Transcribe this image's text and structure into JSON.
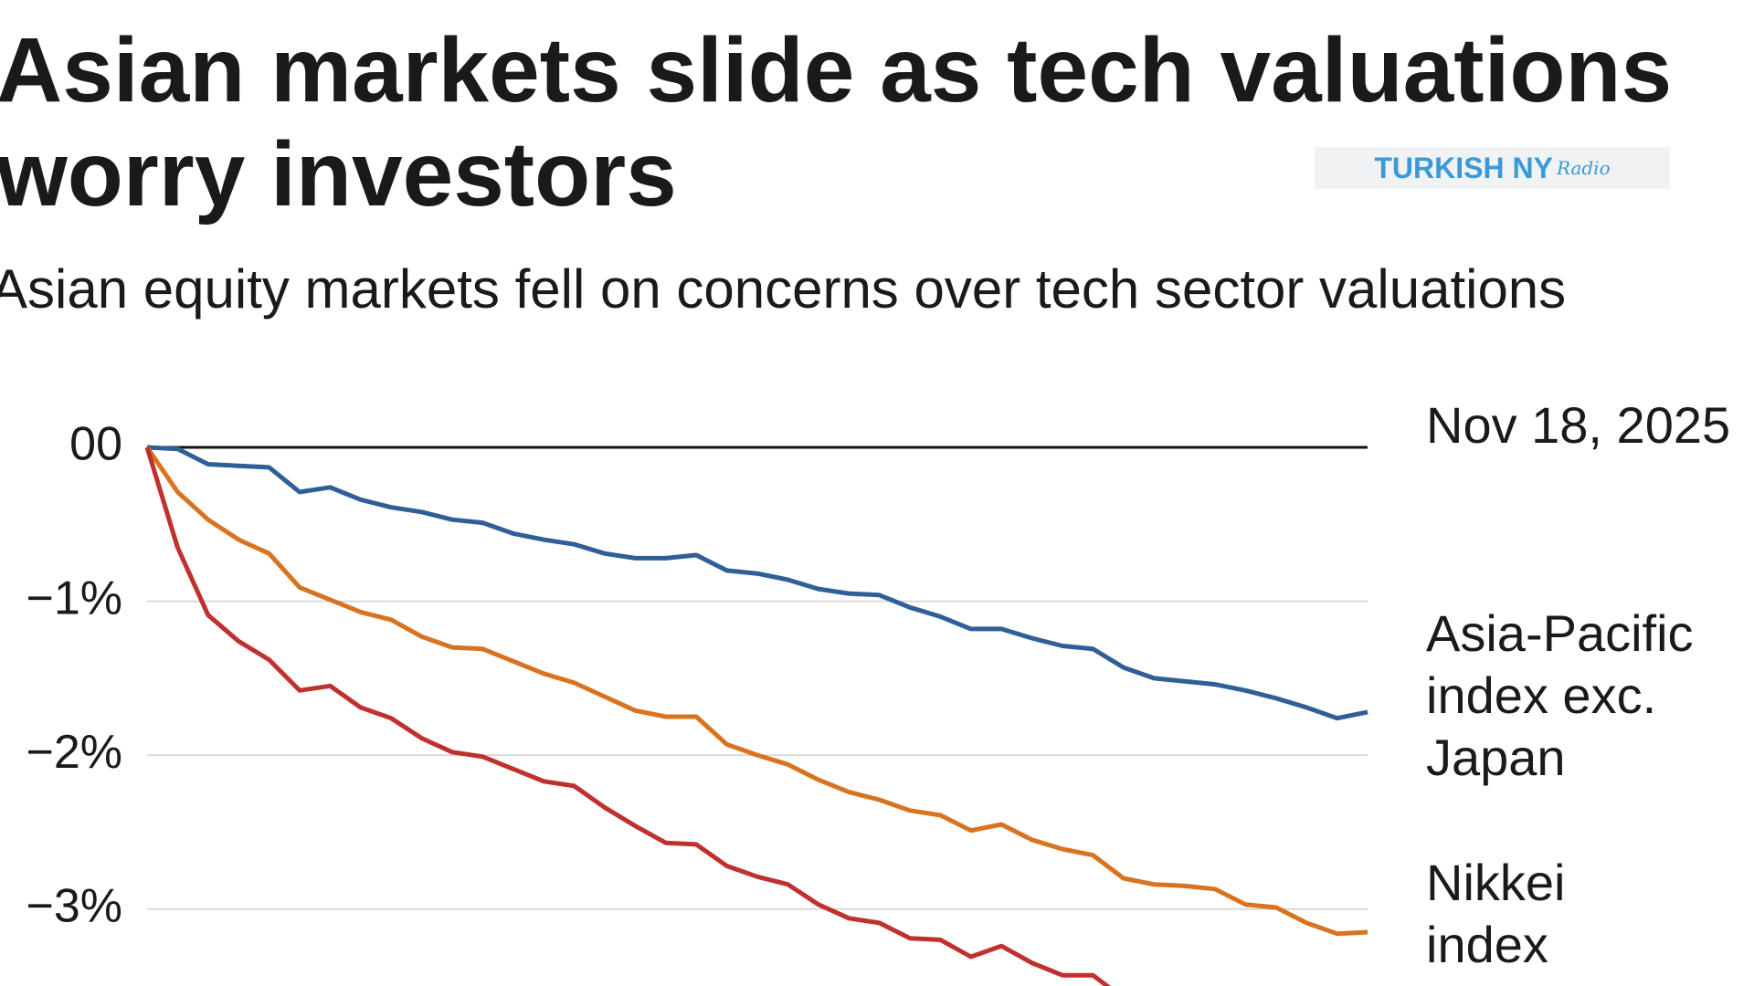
{
  "chart_data": {
    "type": "line",
    "title": "Asian markets slide as tech valuations worry investors",
    "subtitle": "Asian equity markets fell on concerns over tech sector valuations",
    "annotation": "Nov 18, 2025",
    "ylim": [
      -3.5,
      0
    ],
    "yticks": [
      {
        "value": 0,
        "label": "00"
      },
      {
        "value": -1,
        "label": "−1%"
      },
      {
        "value": -2,
        "label": "−2%"
      },
      {
        "value": -3,
        "label": "−3%"
      }
    ],
    "grid": true,
    "series": [
      {
        "name": "Asia-Pacific index exc. Japan",
        "color": "#2f5f98",
        "values": [
          0,
          -0.01,
          -0.11,
          -0.12,
          -0.13,
          -0.29,
          -0.26,
          -0.34,
          -0.39,
          -0.42,
          -0.47,
          -0.49,
          -0.56,
          -0.6,
          -0.63,
          -0.69,
          -0.72,
          -0.72,
          -0.7,
          -0.8,
          -0.82,
          -0.86,
          -0.92,
          -0.95,
          -0.96,
          -1.04,
          -1.1,
          -1.18,
          -1.18,
          -1.24,
          -1.29,
          -1.31,
          -1.43,
          -1.5,
          -1.52,
          -1.54,
          -1.58,
          -1.63,
          -1.69,
          -1.76,
          -1.72
        ]
      },
      {
        "name": "Nikkei index",
        "color": "#d9731f",
        "values": [
          0,
          -0.29,
          -0.47,
          -0.6,
          -0.69,
          -0.91,
          -0.99,
          -1.07,
          -1.12,
          -1.23,
          -1.3,
          -1.31,
          -1.39,
          -1.47,
          -1.53,
          -1.62,
          -1.71,
          -1.75,
          -1.75,
          -1.93,
          -2.0,
          -2.06,
          -2.16,
          -2.24,
          -2.29,
          -2.36,
          -2.39,
          -2.49,
          -2.45,
          -2.55,
          -2.61,
          -2.65,
          -2.8,
          -2.84,
          -2.85,
          -2.87,
          -2.97,
          -2.99,
          -3.09,
          -3.16,
          -3.15
        ]
      },
      {
        "color": "#c0302f",
        "values": [
          0,
          -0.65,
          -1.09,
          -1.26,
          -1.38,
          -1.58,
          -1.55,
          -1.69,
          -1.76,
          -1.89,
          -1.98,
          -2.01,
          -2.09,
          -2.17,
          -2.2,
          -2.34,
          -2.46,
          -2.57,
          -2.58,
          -2.72,
          -2.79,
          -2.84,
          -2.97,
          -3.06,
          -3.09,
          -3.19,
          -3.2,
          -3.31,
          -3.24,
          -3.35,
          -3.43,
          -3.43,
          -3.58,
          null,
          null,
          null,
          null,
          null,
          null,
          null,
          null
        ]
      }
    ]
  },
  "watermark": {
    "text": "TURKISH NY",
    "script": "Radio"
  }
}
